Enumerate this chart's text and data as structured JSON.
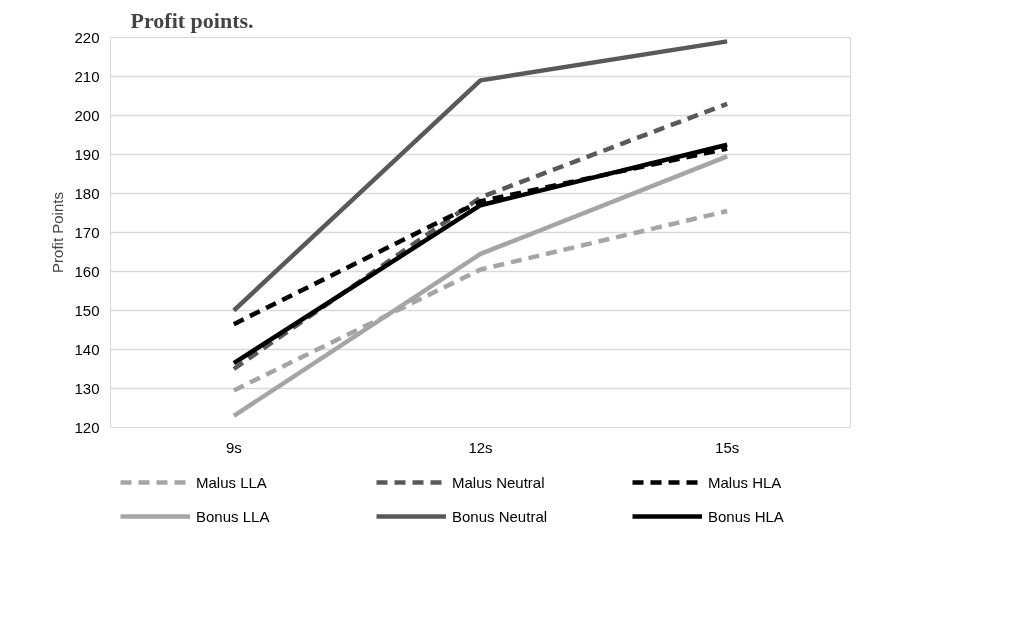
{
  "chart_data": {
    "type": "line",
    "title": "Profit points.",
    "ylabel": "Profit Points",
    "categories": [
      "9s",
      "12s",
      "15s"
    ],
    "ylim": [
      120,
      220
    ],
    "yticks": [
      120,
      130,
      140,
      150,
      160,
      170,
      180,
      190,
      200,
      210,
      220
    ],
    "grid": "y",
    "legend": "bottom",
    "marker": "none",
    "series": [
      {
        "name": "Malus LLA",
        "color": "#a5a5a5",
        "line_style": "dashed",
        "values": [
          129.5,
          160.5,
          175.5
        ]
      },
      {
        "name": "Malus Neutral",
        "color": "#595959",
        "line_style": "dashed",
        "values": [
          135,
          179,
          203
        ]
      },
      {
        "name": "Malus HLA",
        "color": "#000000",
        "line_style": "dashed",
        "values": [
          146.5,
          178,
          191.5
        ]
      },
      {
        "name": "Bonus LLA",
        "color": "#a5a5a5",
        "line_style": "solid",
        "values": [
          123,
          164.5,
          189.5
        ]
      },
      {
        "name": "Bonus Neutral",
        "color": "#595959",
        "line_style": "solid",
        "values": [
          150,
          209,
          219
        ]
      },
      {
        "name": "Bonus HLA",
        "color": "#000000",
        "line_style": "solid",
        "values": [
          136.5,
          177,
          192.5
        ]
      }
    ]
  }
}
